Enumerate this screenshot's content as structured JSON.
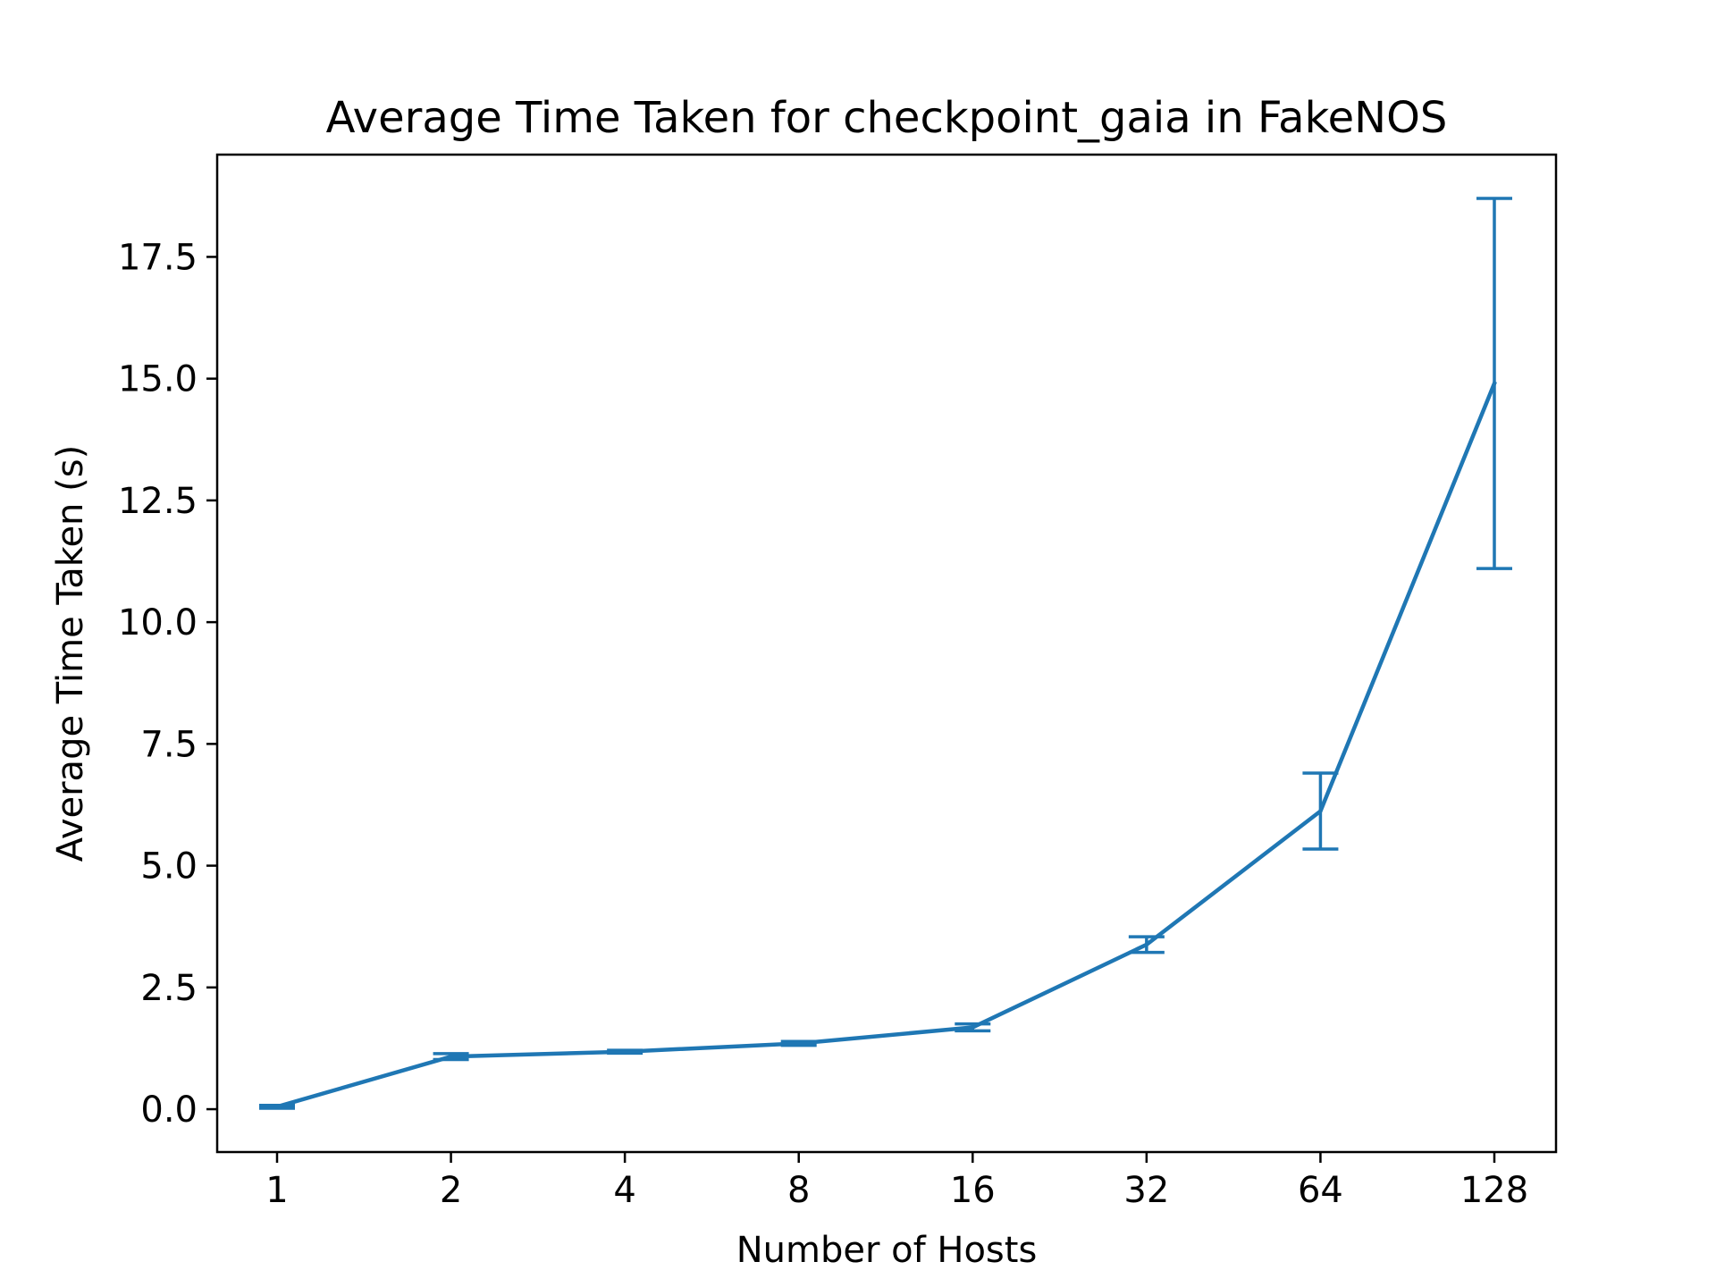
{
  "colors": {
    "series": "#1f77b4",
    "axis": "#000000",
    "background": "#ffffff"
  },
  "chart_data": {
    "type": "line",
    "title": "Average Time Taken for checkpoint_gaia in FakeNOS",
    "xlabel": "Number of Hosts",
    "ylabel": "Average Time Taken (s)",
    "x_scale": "log2",
    "x": [
      1,
      2,
      4,
      8,
      16,
      32,
      64,
      128
    ],
    "x_tick_labels": [
      "1",
      "2",
      "4",
      "8",
      "16",
      "32",
      "64",
      "128"
    ],
    "y_ticks": [
      0.0,
      2.5,
      5.0,
      7.5,
      10.0,
      12.5,
      15.0,
      17.5
    ],
    "y_tick_labels": [
      "0.0",
      "2.5",
      "5.0",
      "7.5",
      "10.0",
      "12.5",
      "15.0",
      "17.5"
    ],
    "ylim": [
      -0.88,
      19.6
    ],
    "grid": false,
    "legend": "none",
    "series": [
      {
        "values": [
          0.05,
          1.08,
          1.18,
          1.35,
          1.68,
          3.38,
          6.12,
          14.9
        ],
        "error": [
          0.03,
          0.06,
          0.03,
          0.04,
          0.07,
          0.16,
          0.78,
          3.8
        ]
      }
    ]
  }
}
